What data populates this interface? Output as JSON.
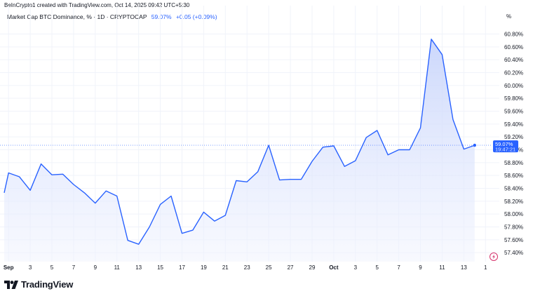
{
  "header": {
    "credit": "BeInCrypto1 created with TradingView.com, Oct 14, 2025 09:42 UTC+5:30",
    "symbol": "Market Cap BTC Dominance, % · 1D · CRYPTOCAP",
    "last_value": "59.07%",
    "change": "+0.05 (+0.09%)",
    "unit": "%"
  },
  "price_tag": {
    "value": "59.07%",
    "countdown": "19:47:21"
  },
  "brand": {
    "name": "TradingView",
    "logo_icon": "tradingview-logo-icon"
  },
  "colors": {
    "line": "#2962ff",
    "fill_top": "#c6d3fb",
    "fill_bottom": "#f0f3fe",
    "grid": "#f0f3fa",
    "dotted": "#2962ff",
    "tag_bg": "#2962ff"
  },
  "chart_data": {
    "type": "area",
    "ylim": [
      57.26,
      60.98
    ],
    "y_ticks": [
      60.8,
      60.6,
      60.4,
      60.2,
      60.0,
      59.8,
      59.6,
      59.4,
      59.2,
      59.0,
      58.8,
      58.6,
      58.4,
      58.2,
      58.0,
      57.8,
      57.6,
      57.4
    ],
    "y_tick_labels": [
      "60.80%",
      "60.60%",
      "60.40%",
      "60.20%",
      "60.00%",
      "59.80%",
      "59.60%",
      "59.40%",
      "59.20%",
      "59.00%",
      "58.80%",
      "58.60%",
      "58.40%",
      "58.20%",
      "58.00%",
      "57.80%",
      "57.60%",
      "57.40%"
    ],
    "x_ticks": [
      {
        "label": "Sep",
        "day": 1,
        "bold": true
      },
      {
        "label": "3",
        "day": 3
      },
      {
        "label": "5",
        "day": 5
      },
      {
        "label": "7",
        "day": 7
      },
      {
        "label": "9",
        "day": 9
      },
      {
        "label": "11",
        "day": 11
      },
      {
        "label": "13",
        "day": 13
      },
      {
        "label": "15",
        "day": 15
      },
      {
        "label": "17",
        "day": 17
      },
      {
        "label": "19",
        "day": 19
      },
      {
        "label": "21",
        "day": 21
      },
      {
        "label": "23",
        "day": 23
      },
      {
        "label": "25",
        "day": 25
      },
      {
        "label": "27",
        "day": 27
      },
      {
        "label": "29",
        "day": 29
      },
      {
        "label": "Oct",
        "day": 31,
        "bold": true
      },
      {
        "label": "3",
        "day": 33
      },
      {
        "label": "5",
        "day": 35
      },
      {
        "label": "7",
        "day": 37
      },
      {
        "label": "9",
        "day": 39
      },
      {
        "label": "11",
        "day": 41
      },
      {
        "label": "13",
        "day": 43
      },
      {
        "label": "1",
        "day": 45
      }
    ],
    "x_range": [
      0.6,
      45.5
    ],
    "series": [
      {
        "dates": [
          "Aug 31",
          "Sep 1",
          "Sep 2",
          "Sep 3",
          "Sep 4",
          "Sep 5",
          "Sep 6",
          "Sep 7",
          "Sep 8",
          "Sep 9",
          "Sep 10",
          "Sep 11",
          "Sep 12",
          "Sep 13",
          "Sep 14",
          "Sep 15",
          "Sep 16",
          "Sep 17",
          "Sep 18",
          "Sep 19",
          "Sep 20",
          "Sep 21",
          "Sep 22",
          "Sep 23",
          "Sep 24",
          "Sep 25",
          "Sep 26",
          "Sep 27",
          "Sep 28",
          "Sep 29",
          "Sep 30",
          "Oct 1",
          "Oct 2",
          "Oct 3",
          "Oct 4",
          "Oct 5",
          "Oct 6",
          "Oct 7",
          "Oct 8",
          "Oct 9",
          "Oct 10",
          "Oct 11",
          "Oct 12",
          "Oct 13",
          "Oct 14"
        ],
        "days": [
          0.6,
          1,
          2,
          3,
          4,
          5,
          6,
          7,
          8,
          9,
          10,
          11,
          12,
          13,
          14,
          15,
          16,
          17,
          18,
          19,
          20,
          21,
          22,
          23,
          24,
          25,
          26,
          27,
          28,
          29,
          30,
          31,
          32,
          33,
          34,
          35,
          36,
          37,
          38,
          39,
          40,
          41,
          42,
          43,
          44
        ],
        "values": [
          58.33,
          58.64,
          58.58,
          58.37,
          58.78,
          58.61,
          58.62,
          58.46,
          58.33,
          58.17,
          58.36,
          58.28,
          57.59,
          57.53,
          57.8,
          58.15,
          58.28,
          57.7,
          57.75,
          58.03,
          57.89,
          57.98,
          58.52,
          58.5,
          58.66,
          59.07,
          58.53,
          58.54,
          58.54,
          58.82,
          59.04,
          59.06,
          58.74,
          58.83,
          59.19,
          59.3,
          58.92,
          59.0,
          59.0,
          59.34,
          60.72,
          60.48,
          59.47,
          59.01,
          59.07
        ]
      }
    ]
  }
}
